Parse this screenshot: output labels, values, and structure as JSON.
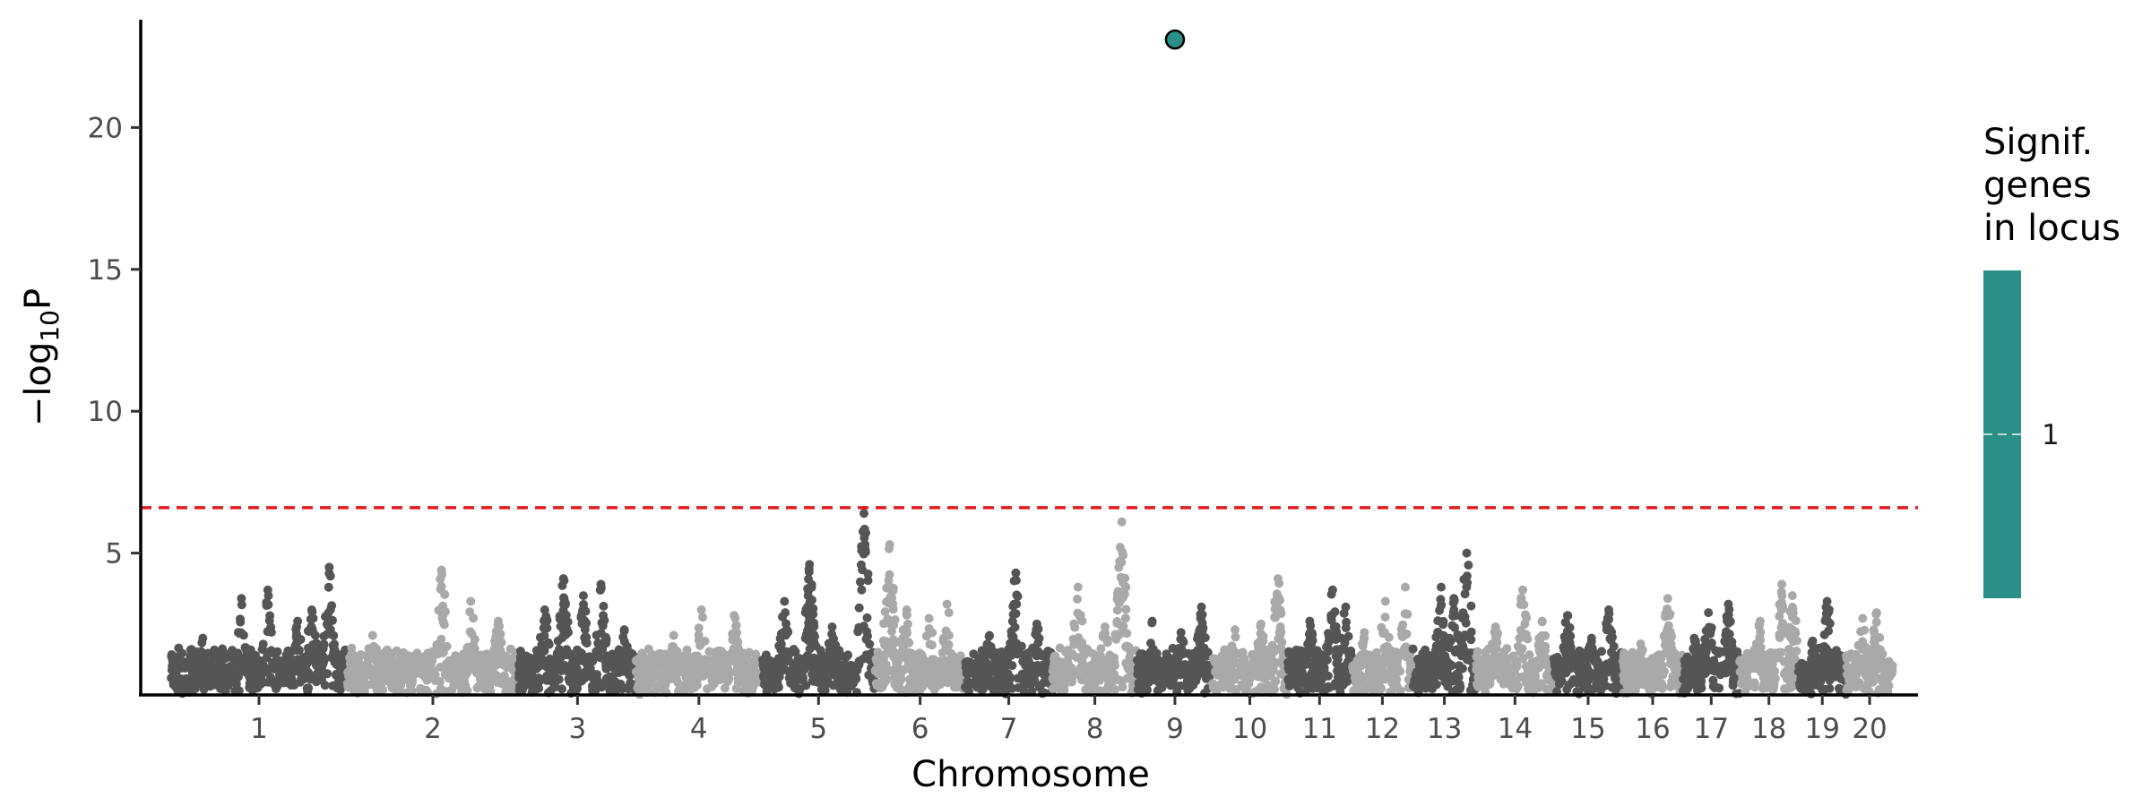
{
  "chart_data": {
    "type": "scatter",
    "subtype": "manhattan",
    "title": "",
    "xlabel": "Chromosome",
    "ylabel_parts": [
      "−log",
      "10",
      "P"
    ],
    "ylim": [
      0,
      23.8
    ],
    "y_ticks": [
      5,
      10,
      15,
      20
    ],
    "grid": false,
    "significance_threshold": 6.6,
    "colors": {
      "dark": "#555555",
      "light": "#a9a9a9",
      "threshold": "#e41a1c",
      "highlight": "#2a9087",
      "axis": "#000000"
    },
    "chromosomes": [
      {
        "label": "1",
        "start": 0,
        "end": 20.4,
        "peaks": [
          [
            0.18,
            2.0
          ],
          [
            0.4,
            3.4
          ],
          [
            0.55,
            3.7
          ],
          [
            0.72,
            2.6
          ],
          [
            0.8,
            3.0
          ],
          [
            0.9,
            4.5
          ]
        ]
      },
      {
        "label": "2",
        "start": 20.4,
        "end": 40.4,
        "peaks": [
          [
            0.15,
            2.1
          ],
          [
            0.55,
            4.4
          ],
          [
            0.72,
            3.3
          ],
          [
            0.88,
            2.6
          ]
        ]
      },
      {
        "label": "3",
        "start": 40.4,
        "end": 54.0,
        "peaks": [
          [
            0.22,
            3.0
          ],
          [
            0.38,
            4.1
          ],
          [
            0.55,
            3.5
          ],
          [
            0.7,
            3.9
          ],
          [
            0.9,
            2.3
          ]
        ]
      },
      {
        "label": "4",
        "start": 54.0,
        "end": 68.6,
        "peaks": [
          [
            0.3,
            2.1
          ],
          [
            0.52,
            3.0
          ],
          [
            0.78,
            2.8
          ]
        ]
      },
      {
        "label": "5",
        "start": 68.6,
        "end": 81.8,
        "peaks": [
          [
            0.2,
            3.3
          ],
          [
            0.42,
            4.6
          ],
          [
            0.62,
            2.4
          ],
          [
            0.9,
            6.4
          ]
        ]
      },
      {
        "label": "6",
        "start": 81.8,
        "end": 92.2,
        "peaks": [
          [
            0.16,
            5.3
          ],
          [
            0.35,
            3.0
          ],
          [
            0.6,
            2.7
          ],
          [
            0.8,
            3.2
          ]
        ]
      },
      {
        "label": "7",
        "start": 92.2,
        "end": 102.4,
        "peaks": [
          [
            0.28,
            2.1
          ],
          [
            0.58,
            4.3
          ],
          [
            0.82,
            2.5
          ]
        ]
      },
      {
        "label": "8",
        "start": 102.4,
        "end": 112.2,
        "peaks": [
          [
            0.3,
            3.8
          ],
          [
            0.62,
            2.4
          ],
          [
            0.82,
            6.1
          ]
        ]
      },
      {
        "label": "9",
        "start": 112.2,
        "end": 121.0,
        "peaks": [
          [
            0.2,
            2.6
          ],
          [
            0.58,
            2.2
          ],
          [
            0.85,
            3.1
          ]
        ]
      },
      {
        "label": "10",
        "start": 121.0,
        "end": 129.6,
        "peaks": [
          [
            0.3,
            2.3
          ],
          [
            0.65,
            2.5
          ],
          [
            0.88,
            4.1
          ]
        ]
      },
      {
        "label": "11",
        "start": 129.6,
        "end": 137.2,
        "peaks": [
          [
            0.35,
            2.6
          ],
          [
            0.7,
            3.7
          ],
          [
            0.9,
            3.1
          ]
        ]
      },
      {
        "label": "12",
        "start": 137.2,
        "end": 144.2,
        "peaks": [
          [
            0.2,
            2.2
          ],
          [
            0.55,
            3.3
          ],
          [
            0.88,
            3.8
          ]
        ]
      },
      {
        "label": "13",
        "start": 144.2,
        "end": 151.6,
        "peaks": [
          [
            0.45,
            3.8
          ],
          [
            0.65,
            3.4
          ],
          [
            0.85,
            5.0
          ]
        ]
      },
      {
        "label": "14",
        "start": 151.6,
        "end": 160.6,
        "peaks": [
          [
            0.25,
            2.4
          ],
          [
            0.6,
            3.7
          ],
          [
            0.85,
            2.6
          ]
        ]
      },
      {
        "label": "15",
        "start": 160.6,
        "end": 168.6,
        "peaks": [
          [
            0.2,
            2.8
          ],
          [
            0.55,
            2.0
          ],
          [
            0.8,
            3.0
          ]
        ]
      },
      {
        "label": "16",
        "start": 168.6,
        "end": 175.6,
        "peaks": [
          [
            0.3,
            1.8
          ],
          [
            0.75,
            3.4
          ]
        ]
      },
      {
        "label": "17",
        "start": 175.6,
        "end": 182.2,
        "peaks": [
          [
            0.2,
            2.0
          ],
          [
            0.45,
            2.9
          ],
          [
            0.8,
            3.2
          ]
        ]
      },
      {
        "label": "18",
        "start": 182.2,
        "end": 189.0,
        "peaks": [
          [
            0.35,
            2.6
          ],
          [
            0.72,
            3.9
          ],
          [
            0.9,
            3.5
          ]
        ]
      },
      {
        "label": "19",
        "start": 189.0,
        "end": 194.6,
        "peaks": [
          [
            0.3,
            1.9
          ],
          [
            0.6,
            3.3
          ]
        ]
      },
      {
        "label": "20",
        "start": 194.6,
        "end": 200.0,
        "peaks": [
          [
            0.35,
            2.7
          ],
          [
            0.65,
            2.9
          ]
        ]
      }
    ],
    "highlight_points": [
      {
        "chromosome": "9",
        "x": 116.6,
        "y": 23.1
      }
    ],
    "legend": {
      "title_lines": [
        "Signif.",
        "genes",
        "in locus"
      ],
      "labels": [
        "1"
      ],
      "placement": "right"
    }
  }
}
